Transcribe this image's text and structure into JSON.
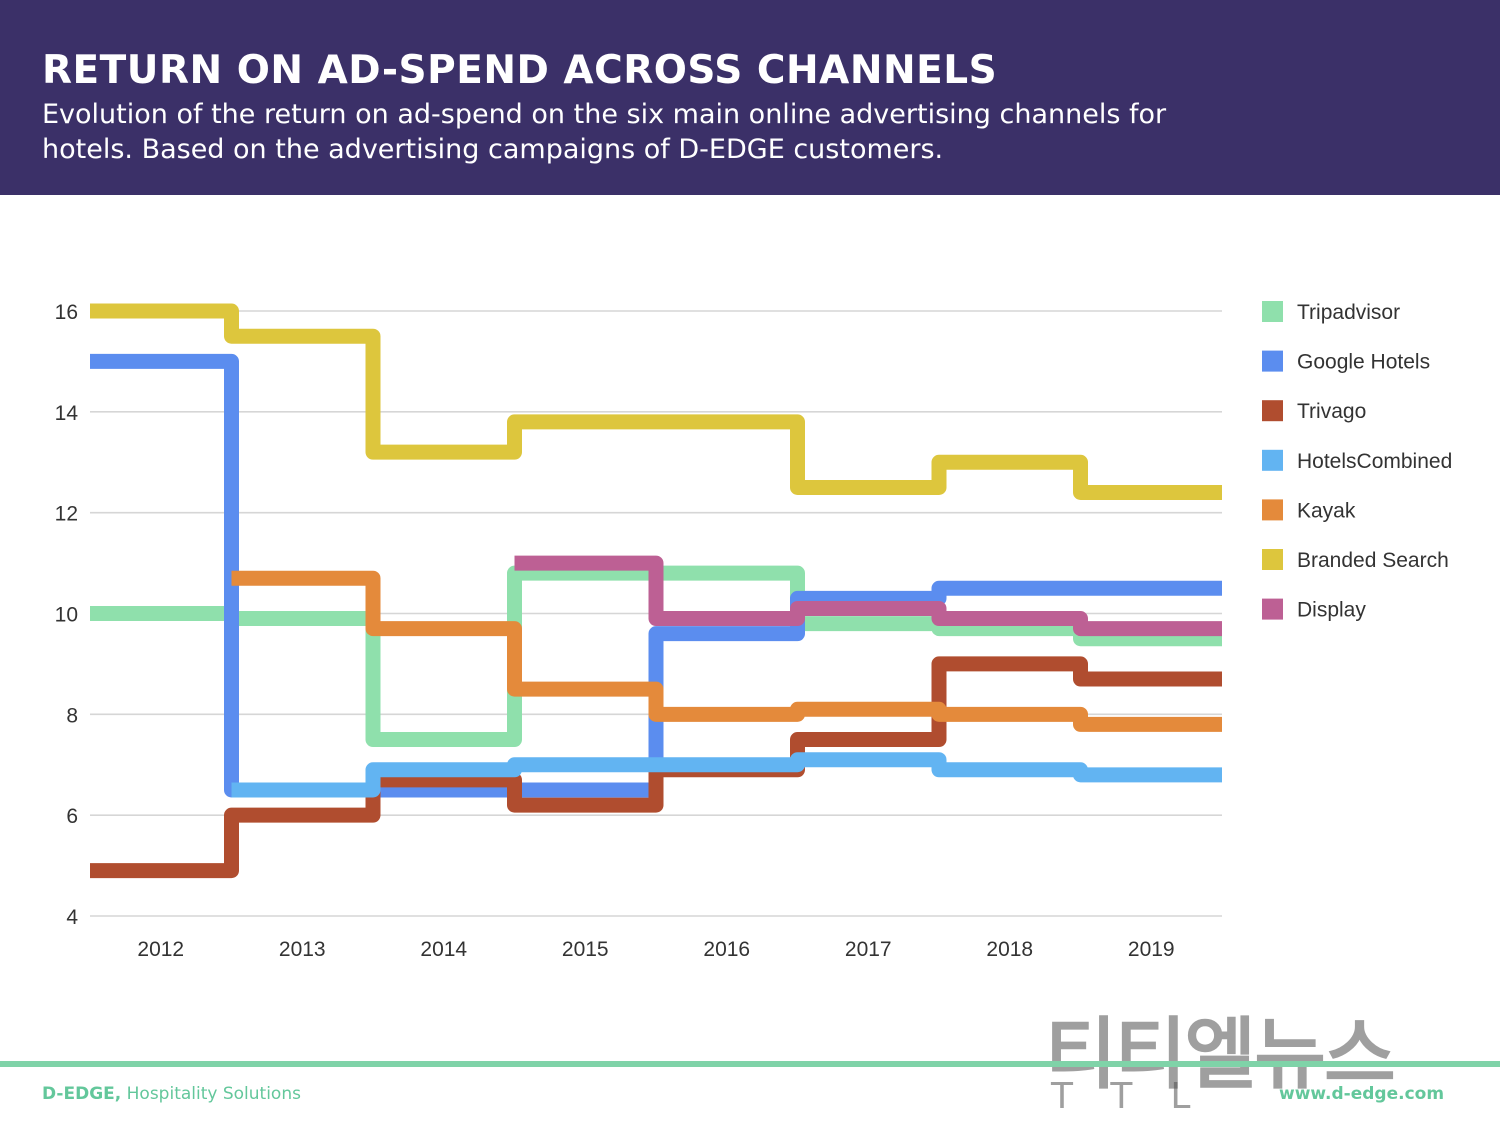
{
  "header": {
    "title": "RETURN ON AD-SPEND ACROSS CHANNELS",
    "subtitle": "Evolution of the return on ad-spend on the six main online advertising channels for hotels. Based on the advertising campaigns of D-EDGE customers."
  },
  "colors": {
    "header_bg": "#3b3068",
    "footer_accent": "#63c79b"
  },
  "chart_data": {
    "type": "line",
    "step": true,
    "title": "",
    "xlabel": "",
    "ylabel": "",
    "categories": [
      "2012",
      "2013",
      "2014",
      "2015",
      "2016",
      "2017",
      "2018",
      "2019"
    ],
    "ylim": [
      4,
      16
    ],
    "yticks": [
      4,
      6,
      8,
      10,
      12,
      14,
      16
    ],
    "grid": true,
    "legend_position": "right",
    "series": [
      {
        "name": "Tripadvisor",
        "color": "#8fe0ac",
        "values": [
          10.0,
          9.9,
          7.5,
          10.8,
          10.8,
          9.8,
          9.7,
          9.5
        ]
      },
      {
        "name": "Google Hotels",
        "color": "#5b8def",
        "values": [
          15.0,
          6.5,
          null,
          null,
          9.6,
          10.3,
          10.5,
          10.5
        ]
      },
      {
        "name": "Trivago",
        "color": "#b04d2f",
        "values": [
          4.9,
          6.0,
          6.7,
          6.2,
          6.9,
          7.5,
          9.0,
          8.7
        ]
      },
      {
        "name": "HotelsCombined",
        "color": "#62b4f2",
        "values": [
          null,
          6.5,
          6.9,
          7.0,
          7.0,
          7.1,
          6.9,
          6.8
        ]
      },
      {
        "name": "Kayak",
        "color": "#e48a3b",
        "values": [
          null,
          10.7,
          9.7,
          8.5,
          8.0,
          8.1,
          8.0,
          7.8
        ]
      },
      {
        "name": "Branded Search",
        "color": "#ddc63d",
        "values": [
          16.0,
          15.5,
          13.2,
          13.8,
          13.8,
          12.5,
          13.0,
          12.4
        ]
      },
      {
        "name": "Display",
        "color": "#bd6094",
        "values": [
          null,
          null,
          null,
          11.0,
          9.9,
          10.1,
          9.9,
          9.7
        ]
      }
    ]
  },
  "footer": {
    "brand": "D-EDGE,",
    "tagline": "Hospitality Solutions",
    "url": "www.d-edge.com"
  },
  "watermark": {
    "korean": "티티엘뉴스",
    "latin": "TTL"
  }
}
